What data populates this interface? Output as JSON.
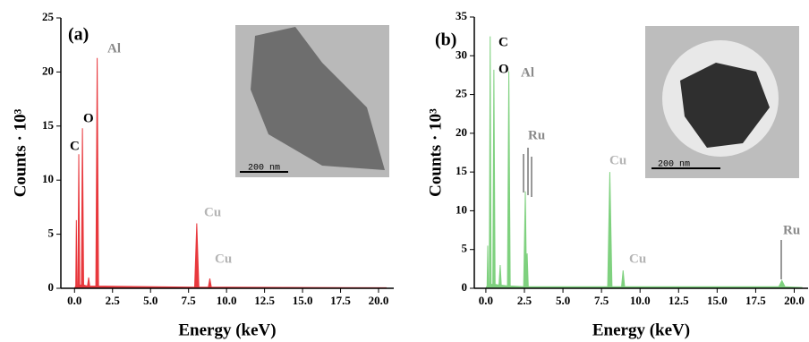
{
  "chart_data": [
    {
      "type": "area",
      "label": "(a)",
      "color": "#e8383d",
      "xlabel": "Energy (keV)",
      "ylabel": "Counts · 10³",
      "x": [
        0,
        0.08,
        0.12,
        0.16,
        0.22,
        0.28,
        0.34,
        0.45,
        0.52,
        0.6,
        0.85,
        0.93,
        1.0,
        1.4,
        1.49,
        1.58,
        2,
        7.9,
        8.04,
        8.18,
        8.8,
        8.9,
        9.0,
        10,
        20.5
      ],
      "values": [
        0,
        0.2,
        6.3,
        0.2,
        0.2,
        12.4,
        0.3,
        0.3,
        14.8,
        0.3,
        0.2,
        1.0,
        0.2,
        0.2,
        21.3,
        0.2,
        0.2,
        0.1,
        6.0,
        0.1,
        0.1,
        0.9,
        0.1,
        0.1,
        0.05
      ],
      "xlim": [
        -0.9,
        21
      ],
      "ylim": [
        0,
        25
      ],
      "xticks": [
        {
          "value": 0,
          "label": "0.0"
        },
        2.5,
        {
          "value": 5,
          "label": "5.0"
        },
        7.5,
        {
          "value": 10,
          "label": "10.0"
        },
        12.5,
        {
          "value": 15,
          "label": "15.0"
        },
        17.5,
        {
          "value": 20,
          "label": "20.0"
        }
      ],
      "yticks": [
        0,
        5,
        10,
        15,
        20,
        25
      ],
      "annotations": [
        {
          "text": "C",
          "color": "#000000"
        },
        {
          "text": "O",
          "color": "#000000"
        },
        {
          "text": "Al",
          "color": "#8a8a8a"
        },
        {
          "text": "Cu",
          "color": "#b4b4b4"
        },
        {
          "text": "Cu",
          "color": "#b4b4b4"
        }
      ],
      "inset_scale": "200 nm"
    },
    {
      "type": "area",
      "label": "(b)",
      "color": "#7fd17f",
      "xlabel": "Energy (keV)",
      "ylabel": "Counts · 10³",
      "x": [
        0,
        0.08,
        0.12,
        0.16,
        0.22,
        0.28,
        0.34,
        0.45,
        0.52,
        0.6,
        0.85,
        0.93,
        1.0,
        1.4,
        1.49,
        1.58,
        2.45,
        2.56,
        2.62,
        2.68,
        2.75,
        7.9,
        8.04,
        8.18,
        8.8,
        8.9,
        9.0,
        19.0,
        19.2,
        19.4,
        20.5
      ],
      "values": [
        0,
        0.3,
        5.5,
        0.3,
        0.3,
        32.5,
        0.5,
        0.5,
        28.2,
        0.5,
        0.4,
        3.0,
        0.4,
        0.3,
        28.0,
        0.3,
        0.2,
        12.5,
        3,
        4.5,
        0.2,
        0.2,
        15.0,
        0.2,
        0.2,
        2.3,
        0.2,
        0.2,
        1.0,
        0.2,
        0.1
      ],
      "xlim": [
        -0.75,
        20.9
      ],
      "ylim": [
        0,
        35
      ],
      "xticks": [
        {
          "value": 0,
          "label": "0.0"
        },
        2.5,
        {
          "value": 5,
          "label": "5.0"
        },
        7.5,
        {
          "value": 10,
          "label": "10.0"
        },
        12.5,
        {
          "value": 15,
          "label": "15.0"
        },
        17.5,
        {
          "value": 20,
          "label": "20.0"
        }
      ],
      "yticks": [
        0,
        5,
        10,
        15,
        20,
        25,
        30,
        35
      ],
      "annotations": [
        {
          "text": "C",
          "color": "#000000"
        },
        {
          "text": "O",
          "color": "#000000"
        },
        {
          "text": "Al",
          "color": "#8a8a8a"
        },
        {
          "text": "Ru",
          "color": "#8a8a8a"
        },
        {
          "text": "Cu",
          "color": "#b4b4b4"
        },
        {
          "text": "Cu",
          "color": "#b4b4b4"
        },
        {
          "text": "Ru",
          "color": "#8a8a8a"
        }
      ],
      "inset_scale": "200 nm"
    }
  ]
}
